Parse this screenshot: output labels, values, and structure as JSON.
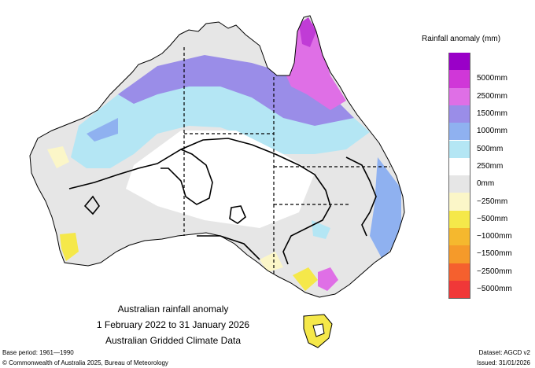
{
  "legend": {
    "title": "Rainfall anomaly (mm)",
    "items": [
      {
        "color": "#9a00c8"
      },
      {
        "color": "#d037d8",
        "label": "5000mm"
      },
      {
        "color": "#df6fe6",
        "label": "2500mm"
      },
      {
        "color": "#9a8de8",
        "label": "1500mm"
      },
      {
        "color": "#8fb1f0",
        "label": "1000mm"
      },
      {
        "color": "#b4e6f4",
        "label": "500mm"
      },
      {
        "color": "#ffffff",
        "label": "250mm"
      },
      {
        "color": "#e6e6e6",
        "label": "0mm"
      },
      {
        "color": "#fbf6c8",
        "label": "−250mm"
      },
      {
        "color": "#f5e84a",
        "label": "−500mm"
      },
      {
        "color": "#f5b82e",
        "label": "−1000mm"
      },
      {
        "color": "#f59a2a",
        "label": "−1500mm"
      },
      {
        "color": "#f5602e",
        "label": "−2500mm"
      },
      {
        "color": "#f03838",
        "label": "−5000mm"
      }
    ]
  },
  "map_title": {
    "line1": "Australian rainfall anomaly",
    "line2": "1 February 2022 to 31 January 2026",
    "line3": "Australian Gridded Climate Data"
  },
  "footer": {
    "base_period": "Base period: 1961—1990",
    "dataset": "Dataset: AGCD v2",
    "copyright": "© Commonwealth of Australia 2025, Bureau of Meteorology",
    "issued": "Issued: 31/01/2026"
  }
}
